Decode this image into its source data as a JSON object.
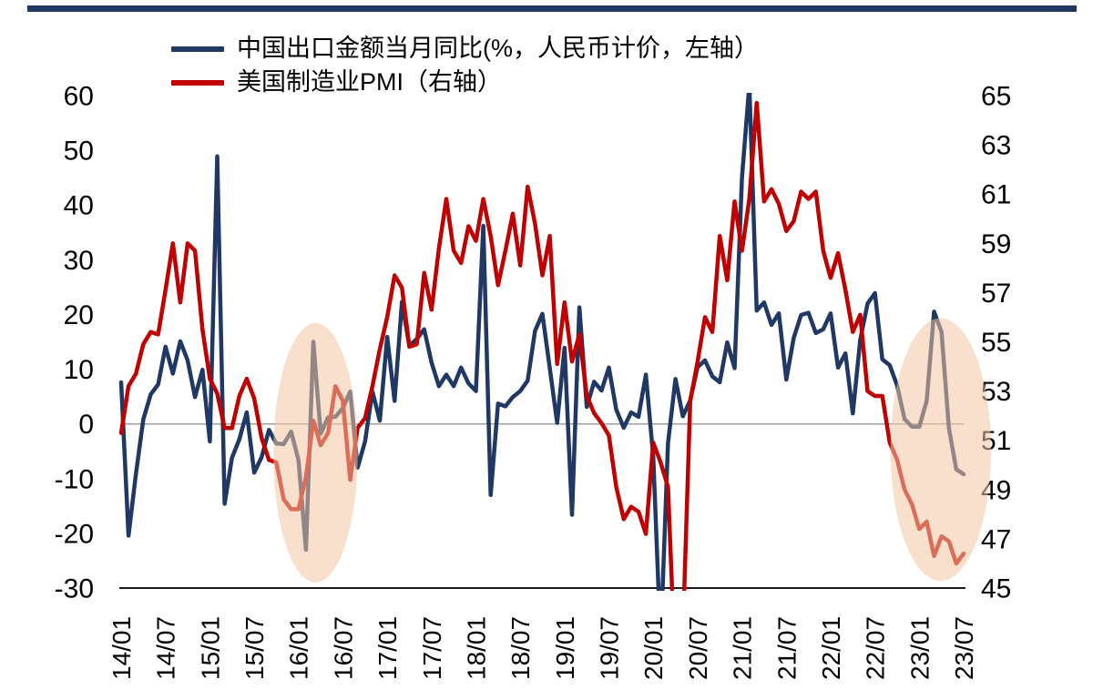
{
  "colors": {
    "navy": "#1f3864",
    "red": "#c00000",
    "top_bar": "#1f3864",
    "zero_line": "#a0a0a0",
    "axis_line": "#1a1a1a",
    "tick_text": "#000000",
    "highlight": "#f3c6a2"
  },
  "chart_data": {
    "type": "line",
    "title": "",
    "x_start": "2014-01",
    "x_interval": "month",
    "x_tick_labels": [
      "14/01",
      "14/07",
      "15/01",
      "15/07",
      "16/01",
      "16/07",
      "17/01",
      "17/07",
      "18/01",
      "18/07",
      "19/01",
      "19/07",
      "20/01",
      "20/07",
      "21/01",
      "21/07",
      "22/01",
      "22/07",
      "23/01",
      "23/07"
    ],
    "left_axis": {
      "min": -30,
      "max": 60,
      "ticks": [
        60,
        50,
        40,
        30,
        20,
        10,
        0,
        -10,
        -20,
        -30
      ]
    },
    "right_axis": {
      "min": 45,
      "max": 65,
      "ticks": [
        65,
        63,
        61,
        59,
        57,
        55,
        53,
        51,
        49,
        47,
        45
      ]
    },
    "grid": "zero-line-only",
    "legend_position": "top-left",
    "series": [
      {
        "name": "中国出口金额当月同比(%，人民币计价，左轴）",
        "axis": "left",
        "color": "#1f3864",
        "values": [
          7.6,
          -20.4,
          -9.2,
          0.8,
          5.4,
          7.2,
          14.1,
          9.2,
          15.1,
          11.6,
          4.9,
          9.9,
          -3.2,
          48.9,
          -14.6,
          -6.2,
          -2.8,
          2.1,
          -8.9,
          -6.1,
          -1.1,
          -3.6,
          -3.7,
          -1.4,
          -6.6,
          -23.0,
          15.0,
          -1.8,
          1.2,
          1.3,
          2.9,
          5.9,
          -8.0,
          -3.2,
          5.9,
          0.6,
          15.9,
          4.2,
          22.3,
          14.3,
          15.5,
          17.3,
          11.2,
          6.9,
          9.0,
          6.9,
          10.3,
          7.4,
          6.0,
          36.2,
          -13.0,
          3.7,
          3.2,
          4.9,
          6.0,
          7.9,
          17.0,
          20.1,
          10.2,
          0.2,
          13.9,
          -16.6,
          21.3,
          3.1,
          7.7,
          6.1,
          10.3,
          2.6,
          -0.7,
          2.1,
          1.3,
          9.0,
          -6.0,
          -40.0,
          -3.5,
          8.2,
          1.4,
          4.3,
          10.4,
          11.6,
          8.7,
          7.6,
          14.9,
          10.2,
          45.0,
          62.0,
          20.7,
          22.2,
          18.1,
          20.2,
          8.1,
          15.7,
          19.9,
          20.3,
          16.6,
          17.3,
          20.2,
          10.3,
          12.9,
          1.9,
          15.3,
          22.0,
          23.9,
          11.8,
          10.7,
          7.0,
          0.9,
          -0.5,
          -0.5,
          4.2,
          20.5,
          16.8,
          -0.8,
          -8.3,
          -9.2
        ]
      },
      {
        "name": "美国制造业PMI（右轴）",
        "axis": "right",
        "color": "#c00000",
        "values": [
          51.3,
          53.2,
          53.7,
          54.9,
          55.4,
          55.3,
          57.1,
          59.0,
          56.6,
          59.0,
          58.7,
          55.5,
          53.5,
          52.9,
          51.5,
          51.5,
          52.8,
          53.5,
          52.7,
          51.1,
          50.2,
          50.1,
          48.6,
          48.2,
          48.2,
          49.5,
          51.8,
          50.8,
          51.3,
          53.2,
          52.6,
          49.4,
          51.5,
          51.9,
          53.2,
          54.7,
          56.0,
          57.7,
          57.2,
          54.8,
          54.9,
          57.8,
          56.3,
          58.8,
          60.8,
          58.7,
          58.2,
          59.7,
          59.1,
          60.8,
          59.3,
          57.3,
          58.7,
          60.2,
          58.1,
          61.3,
          59.8,
          57.7,
          59.3,
          54.1,
          56.6,
          54.2,
          55.3,
          52.8,
          52.1,
          51.7,
          51.2,
          49.1,
          47.8,
          48.3,
          48.1,
          47.2,
          50.9,
          50.1,
          49.1,
          41.5,
          43.1,
          52.6,
          54.2,
          56.0,
          55.4,
          59.3,
          57.5,
          60.7,
          58.7,
          60.8,
          64.7,
          60.7,
          61.2,
          60.6,
          59.5,
          59.9,
          61.1,
          60.8,
          61.1,
          58.7,
          57.6,
          58.6,
          57.1,
          55.4,
          56.1,
          53.0,
          52.8,
          52.8,
          50.9,
          50.2,
          49.0,
          48.4,
          47.4,
          47.7,
          46.3,
          47.1,
          46.9,
          46.0,
          46.4
        ]
      }
    ],
    "highlights": [
      {
        "shape": "ellipse",
        "cx_month": 26.3,
        "cy_value": -5.3,
        "rx_months": 5.7,
        "ry_value": 23.7
      },
      {
        "shape": "ellipse",
        "cx_month": 110.9,
        "cy_value": -4.7,
        "rx_months": 6.8,
        "ry_value": 24.0
      }
    ]
  }
}
